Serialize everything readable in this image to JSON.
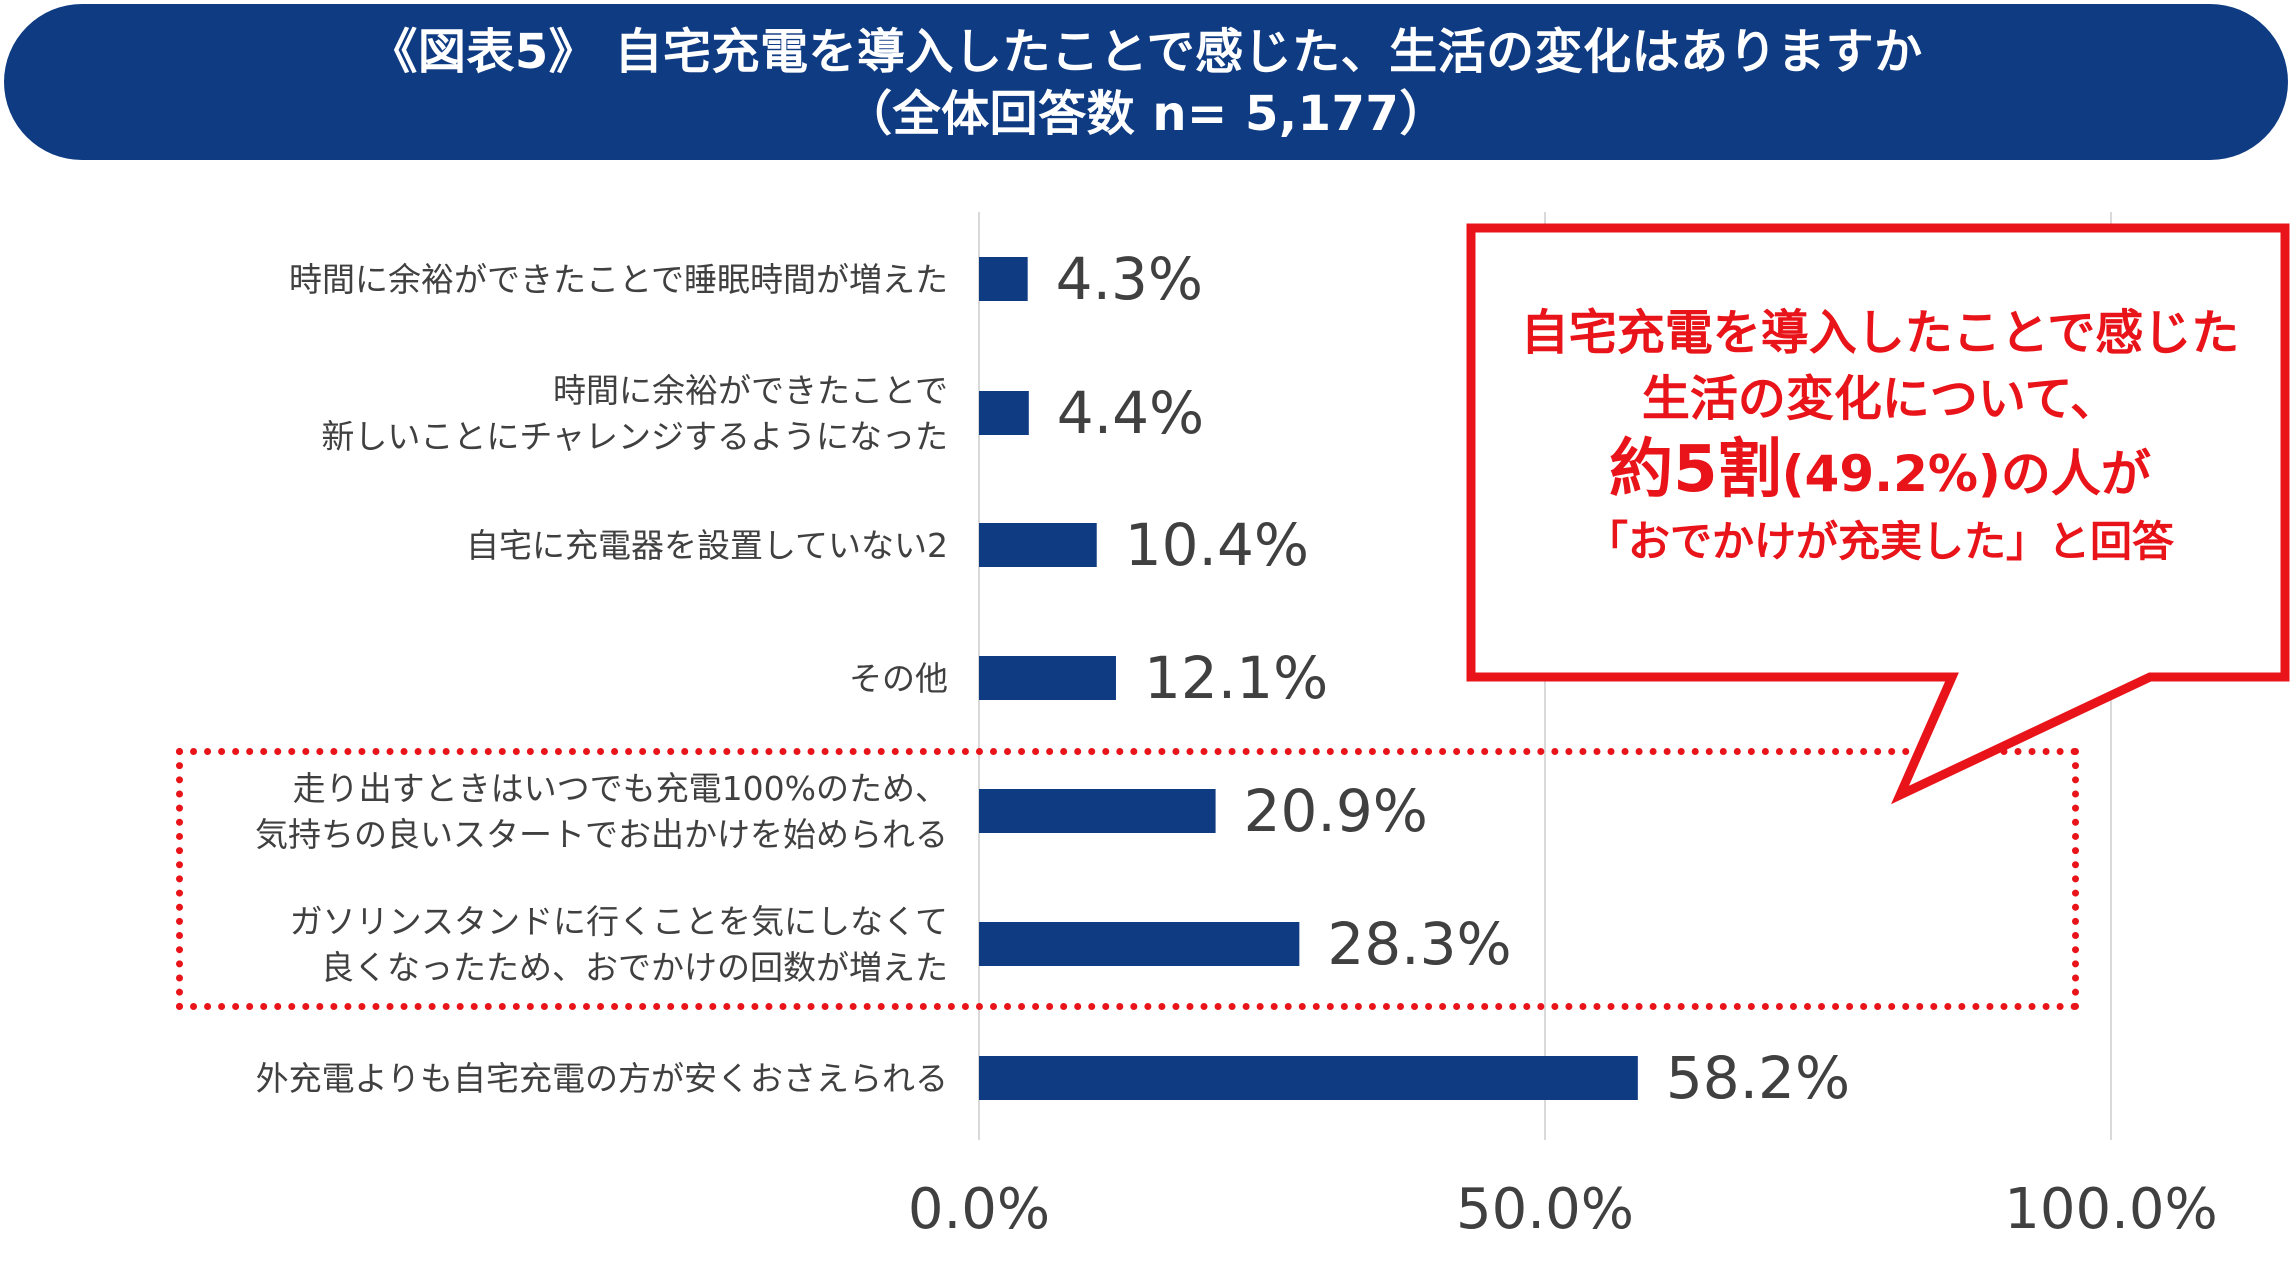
{
  "title": {
    "line1": "《図表5》 自宅充電を導入したことで感じた、生活の変化はありますか",
    "line2": "（全体回答数 n= 5,177）"
  },
  "chart_data": {
    "type": "bar",
    "orientation": "horizontal",
    "categories": [
      [
        "時間に余裕ができたことで睡眠時間が増えた"
      ],
      [
        "時間に余裕ができたことで",
        "新しいことにチャレンジするようになった"
      ],
      [
        "自宅に充電器を設置していない2"
      ],
      [
        "その他"
      ],
      [
        "走り出すときはいつでも充電100%のため、",
        "気持ちの良いスタートでお出かけを始められる"
      ],
      [
        "ガソリンスタンドに行くことを気にしなくて",
        "良くなったため、おでかけの回数が増えた"
      ],
      [
        "外充電よりも自宅充電の方が安くおさえられる"
      ]
    ],
    "values": [
      4.3,
      4.4,
      10.4,
      12.1,
      20.9,
      28.3,
      58.2
    ],
    "value_labels": [
      "4.3%",
      "4.4%",
      "10.4%",
      "12.1%",
      "20.9%",
      "28.3%",
      "58.2%"
    ],
    "xlim": [
      0,
      100
    ],
    "xticks": [
      0,
      50,
      100
    ],
    "xtick_labels": [
      "0.0%",
      "50.0%",
      "100.0%"
    ],
    "grid": true,
    "highlighted_categories": [
      4,
      5
    ],
    "bar_color": "#0f3b82"
  },
  "callout": {
    "line1": "自宅充電を導入したことで感じた",
    "line2": "生活の変化について、",
    "line3_big": "約5割",
    "line3_rest": "(49.2%)の人が",
    "line4": "「おでかけが充実した」と回答",
    "color": "#e8141a"
  },
  "colors": {
    "banner": "#0f3b82",
    "accent_red": "#e8141a",
    "grid": "#d9d9d9",
    "label_text": "#404040"
  }
}
